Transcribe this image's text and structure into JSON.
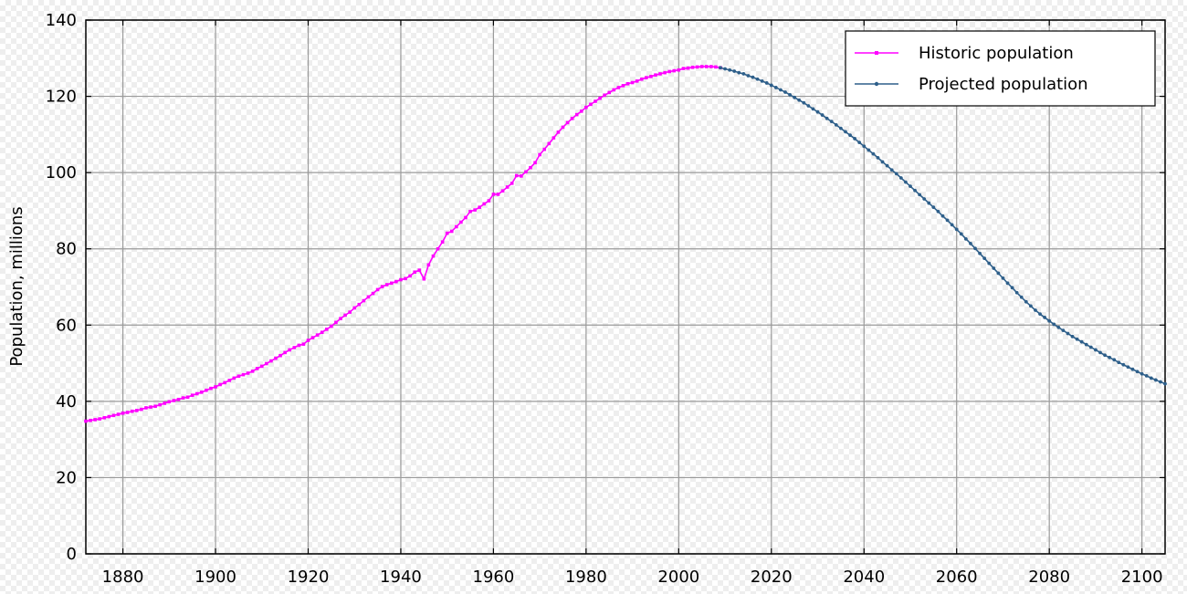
{
  "chart_data": {
    "type": "line",
    "title": "",
    "xlabel": "",
    "ylabel": "Population, millions",
    "xlim": [
      1872,
      2105
    ],
    "ylim": [
      0,
      140
    ],
    "x_ticks": [
      1880,
      1900,
      1920,
      1940,
      1960,
      1980,
      2000,
      2020,
      2040,
      2060,
      2080,
      2100
    ],
    "y_ticks": [
      0,
      20,
      40,
      60,
      80,
      100,
      120,
      140
    ],
    "grid": true,
    "legend_position": "top-right",
    "series": [
      {
        "name": "Historic population",
        "color": "#ff00ff",
        "marker": "square",
        "points": [
          [
            1872,
            34.8
          ],
          [
            1873,
            35.0
          ],
          [
            1874,
            35.2
          ],
          [
            1875,
            35.4
          ],
          [
            1876,
            35.7
          ],
          [
            1877,
            36.0
          ],
          [
            1878,
            36.3
          ],
          [
            1879,
            36.6
          ],
          [
            1880,
            36.9
          ],
          [
            1881,
            37.1
          ],
          [
            1882,
            37.4
          ],
          [
            1883,
            37.6
          ],
          [
            1884,
            37.9
          ],
          [
            1885,
            38.3
          ],
          [
            1886,
            38.5
          ],
          [
            1887,
            38.7
          ],
          [
            1888,
            39.1
          ],
          [
            1889,
            39.5
          ],
          [
            1890,
            39.9
          ],
          [
            1891,
            40.2
          ],
          [
            1892,
            40.5
          ],
          [
            1893,
            40.9
          ],
          [
            1894,
            41.1
          ],
          [
            1895,
            41.6
          ],
          [
            1896,
            42.0
          ],
          [
            1897,
            42.4
          ],
          [
            1898,
            42.9
          ],
          [
            1899,
            43.4
          ],
          [
            1900,
            43.8
          ],
          [
            1901,
            44.4
          ],
          [
            1902,
            44.9
          ],
          [
            1903,
            45.5
          ],
          [
            1904,
            46.1
          ],
          [
            1905,
            46.6
          ],
          [
            1906,
            47.0
          ],
          [
            1907,
            47.4
          ],
          [
            1908,
            47.9
          ],
          [
            1909,
            48.6
          ],
          [
            1910,
            49.2
          ],
          [
            1911,
            49.9
          ],
          [
            1912,
            50.6
          ],
          [
            1913,
            51.3
          ],
          [
            1914,
            52.0
          ],
          [
            1915,
            52.8
          ],
          [
            1916,
            53.5
          ],
          [
            1917,
            54.1
          ],
          [
            1918,
            54.7
          ],
          [
            1919,
            55.0
          ],
          [
            1920,
            56.0
          ],
          [
            1921,
            56.7
          ],
          [
            1922,
            57.4
          ],
          [
            1923,
            58.1
          ],
          [
            1924,
            58.9
          ],
          [
            1925,
            59.7
          ],
          [
            1926,
            60.7
          ],
          [
            1927,
            61.7
          ],
          [
            1928,
            62.6
          ],
          [
            1929,
            63.4
          ],
          [
            1930,
            64.5
          ],
          [
            1931,
            65.4
          ],
          [
            1932,
            66.4
          ],
          [
            1933,
            67.4
          ],
          [
            1934,
            68.3
          ],
          [
            1935,
            69.3
          ],
          [
            1936,
            70.1
          ],
          [
            1937,
            70.6
          ],
          [
            1938,
            71.0
          ],
          [
            1939,
            71.4
          ],
          [
            1940,
            71.9
          ],
          [
            1941,
            72.2
          ],
          [
            1942,
            72.9
          ],
          [
            1943,
            73.9
          ],
          [
            1944,
            74.4
          ],
          [
            1945,
            72.1
          ],
          [
            1946,
            75.8
          ],
          [
            1947,
            78.1
          ],
          [
            1948,
            80.0
          ],
          [
            1949,
            81.8
          ],
          [
            1950,
            84.1
          ],
          [
            1951,
            84.6
          ],
          [
            1952,
            85.8
          ],
          [
            1953,
            87.0
          ],
          [
            1954,
            88.2
          ],
          [
            1955,
            89.8
          ],
          [
            1956,
            90.2
          ],
          [
            1957,
            90.9
          ],
          [
            1958,
            91.8
          ],
          [
            1959,
            92.6
          ],
          [
            1960,
            94.3
          ],
          [
            1961,
            94.3
          ],
          [
            1962,
            95.2
          ],
          [
            1963,
            96.2
          ],
          [
            1964,
            97.2
          ],
          [
            1965,
            99.2
          ],
          [
            1966,
            99.1
          ],
          [
            1967,
            100.2
          ],
          [
            1968,
            101.3
          ],
          [
            1969,
            102.6
          ],
          [
            1970,
            104.7
          ],
          [
            1971,
            106.1
          ],
          [
            1972,
            107.6
          ],
          [
            1973,
            109.1
          ],
          [
            1974,
            110.6
          ],
          [
            1975,
            111.9
          ],
          [
            1976,
            113.1
          ],
          [
            1977,
            114.2
          ],
          [
            1978,
            115.2
          ],
          [
            1979,
            116.1
          ],
          [
            1980,
            117.1
          ],
          [
            1981,
            117.9
          ],
          [
            1982,
            118.7
          ],
          [
            1983,
            119.5
          ],
          [
            1984,
            120.3
          ],
          [
            1985,
            121.0
          ],
          [
            1986,
            121.7
          ],
          [
            1987,
            122.3
          ],
          [
            1988,
            122.8
          ],
          [
            1989,
            123.3
          ],
          [
            1990,
            123.6
          ],
          [
            1991,
            124.0
          ],
          [
            1992,
            124.5
          ],
          [
            1993,
            124.9
          ],
          [
            1994,
            125.2
          ],
          [
            1995,
            125.6
          ],
          [
            1996,
            125.9
          ],
          [
            1997,
            126.2
          ],
          [
            1998,
            126.5
          ],
          [
            1999,
            126.7
          ],
          [
            2000,
            126.9
          ],
          [
            2001,
            127.3
          ],
          [
            2002,
            127.4
          ],
          [
            2003,
            127.6
          ],
          [
            2004,
            127.7
          ],
          [
            2005,
            127.8
          ],
          [
            2006,
            127.8
          ],
          [
            2007,
            127.8
          ],
          [
            2008,
            127.7
          ],
          [
            2009,
            127.5
          ]
        ]
      },
      {
        "name": "Projected population",
        "color": "#2e5f8a",
        "marker": "circle",
        "points": [
          [
            2009,
            127.5
          ],
          [
            2010,
            127.2
          ],
          [
            2011,
            126.9
          ],
          [
            2012,
            126.6
          ],
          [
            2013,
            126.2
          ],
          [
            2014,
            125.9
          ],
          [
            2015,
            125.4
          ],
          [
            2016,
            125.0
          ],
          [
            2017,
            124.5
          ],
          [
            2018,
            124.0
          ],
          [
            2019,
            123.5
          ],
          [
            2020,
            122.9
          ],
          [
            2021,
            122.3
          ],
          [
            2022,
            121.7
          ],
          [
            2023,
            121.1
          ],
          [
            2024,
            120.4
          ],
          [
            2025,
            119.7
          ],
          [
            2026,
            119.0
          ],
          [
            2027,
            118.3
          ],
          [
            2028,
            117.5
          ],
          [
            2029,
            116.7
          ],
          [
            2030,
            115.9
          ],
          [
            2031,
            115.1
          ],
          [
            2032,
            114.2
          ],
          [
            2033,
            113.4
          ],
          [
            2034,
            112.5
          ],
          [
            2035,
            111.6
          ],
          [
            2036,
            110.7
          ],
          [
            2037,
            109.8
          ],
          [
            2038,
            108.9
          ],
          [
            2039,
            107.9
          ],
          [
            2040,
            106.9
          ],
          [
            2041,
            105.9
          ],
          [
            2042,
            104.9
          ],
          [
            2043,
            103.9
          ],
          [
            2044,
            102.8
          ],
          [
            2045,
            101.8
          ],
          [
            2046,
            100.7
          ],
          [
            2047,
            99.7
          ],
          [
            2048,
            98.6
          ],
          [
            2049,
            97.5
          ],
          [
            2050,
            96.4
          ],
          [
            2051,
            95.3
          ],
          [
            2052,
            94.2
          ],
          [
            2053,
            93.1
          ],
          [
            2054,
            92.0
          ],
          [
            2055,
            90.9
          ],
          [
            2056,
            89.8
          ],
          [
            2057,
            88.6
          ],
          [
            2058,
            87.5
          ],
          [
            2059,
            86.3
          ],
          [
            2060,
            85.1
          ],
          [
            2061,
            83.9
          ],
          [
            2062,
            82.6
          ],
          [
            2063,
            81.4
          ],
          [
            2064,
            80.1
          ],
          [
            2065,
            78.8
          ],
          [
            2066,
            77.5
          ],
          [
            2067,
            76.2
          ],
          [
            2068,
            74.9
          ],
          [
            2069,
            73.6
          ],
          [
            2070,
            72.3
          ],
          [
            2071,
            71.0
          ],
          [
            2072,
            69.8
          ],
          [
            2073,
            68.5
          ],
          [
            2074,
            67.3
          ],
          [
            2075,
            66.1
          ],
          [
            2076,
            65.0
          ],
          [
            2077,
            63.9
          ],
          [
            2078,
            62.9
          ],
          [
            2079,
            62.0
          ],
          [
            2080,
            61.1
          ],
          [
            2081,
            60.2
          ],
          [
            2082,
            59.4
          ],
          [
            2083,
            58.6
          ],
          [
            2084,
            57.8
          ],
          [
            2085,
            57.0
          ],
          [
            2086,
            56.3
          ],
          [
            2087,
            55.6
          ],
          [
            2088,
            54.9
          ],
          [
            2089,
            54.2
          ],
          [
            2090,
            53.5
          ],
          [
            2091,
            52.8
          ],
          [
            2092,
            52.1
          ],
          [
            2093,
            51.5
          ],
          [
            2094,
            50.9
          ],
          [
            2095,
            50.2
          ],
          [
            2096,
            49.6
          ],
          [
            2097,
            49.0
          ],
          [
            2098,
            48.4
          ],
          [
            2099,
            47.8
          ],
          [
            2100,
            47.2
          ],
          [
            2101,
            46.7
          ],
          [
            2102,
            46.1
          ],
          [
            2103,
            45.6
          ],
          [
            2104,
            45.1
          ],
          [
            2105,
            44.6
          ]
        ]
      }
    ]
  }
}
